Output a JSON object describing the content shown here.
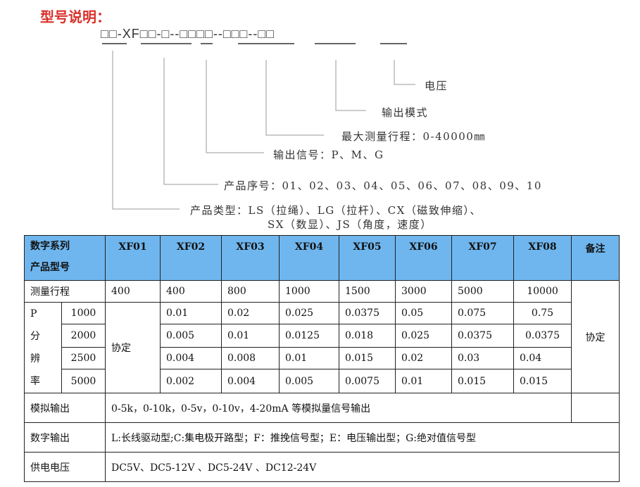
{
  "title": "型号说明：",
  "model_code": "□□-XF□□-□--□□□□--□□□--□□",
  "legend": {
    "voltage": "电压",
    "output_mode": "输出模式",
    "max_range": "最大测量行程：0-40000㎜",
    "output_signal": "输出信号：P、M、G",
    "product_serial": "产品序号：01、02、03、04、05、06、07、08、09、10",
    "product_type_1": "产品类型：LS（拉绳）、LG（拉杆）、CX（磁致伸缩）、",
    "product_type_2": "SX（数显）、JS（角度，速度）"
  },
  "table": {
    "header_line1": "数字系列",
    "header_line2": "产品型号",
    "models": [
      "XF01",
      "XF02",
      "XF03",
      "XF04",
      "XF05",
      "XF06",
      "XF07",
      "XF08"
    ],
    "remark_header": "备注",
    "range_label": "测量行程",
    "ranges": [
      "400",
      "400",
      "800",
      "1000",
      "1500",
      "3000",
      "5000",
      "10000"
    ],
    "resolution_label": [
      "P",
      "分",
      "辨",
      "率"
    ],
    "xf01_resolution": "协定",
    "resolution_rows": [
      {
        "ppr": "1000",
        "values": [
          "0.01",
          "0.02",
          "0.025",
          "0.0375",
          "0.05",
          "0.075",
          "0.75"
        ]
      },
      {
        "ppr": "2000",
        "values": [
          "0.005",
          "0.01",
          "0.0125",
          "0.018",
          "0.025",
          "0.0375",
          "0.0375"
        ]
      },
      {
        "ppr": "2500",
        "values": [
          "0.004",
          "0.008",
          "0.01",
          "0.015",
          "0.02",
          "0.03",
          "0.04"
        ]
      },
      {
        "ppr": "5000",
        "values": [
          "0.002",
          "0.004",
          "0.005",
          "0.0075",
          "0.01",
          "0.015",
          "0.015"
        ]
      }
    ],
    "remark": "协定",
    "analog_label": "模拟输出",
    "analog_value": "0-5k，0-10k，0-5v，0-10v，4-20mA 等模拟量信号输出",
    "digital_label": "数字输出",
    "digital_value": "L:长线驱动型;C:集电极开路型；F：推挽信号型；E：电压输出型；G:绝对值信号型",
    "power_label": "供电电压",
    "power_value": "DC5V、DC5-12V 、DC5-24V 、DC12-24V"
  },
  "colors": {
    "title": "#d9302a",
    "header_bg": "#6fb6ee"
  }
}
